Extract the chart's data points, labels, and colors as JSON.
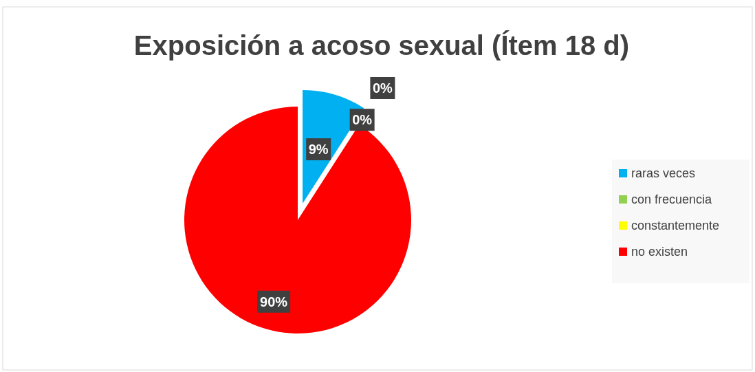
{
  "chart_data": {
    "type": "pie",
    "title": "Exposición a acoso sexual (Ítem 18 d)",
    "categories": [
      "raras veces",
      "con frecuencia",
      "constantemente",
      "no existen"
    ],
    "values": [
      9,
      0,
      0,
      90
    ],
    "colors": [
      "#00b0f0",
      "#92d050",
      "#ffff00",
      "#ff0000"
    ],
    "value_labels": [
      "9%",
      "0%",
      "0%",
      "90%"
    ],
    "legend": "right"
  }
}
